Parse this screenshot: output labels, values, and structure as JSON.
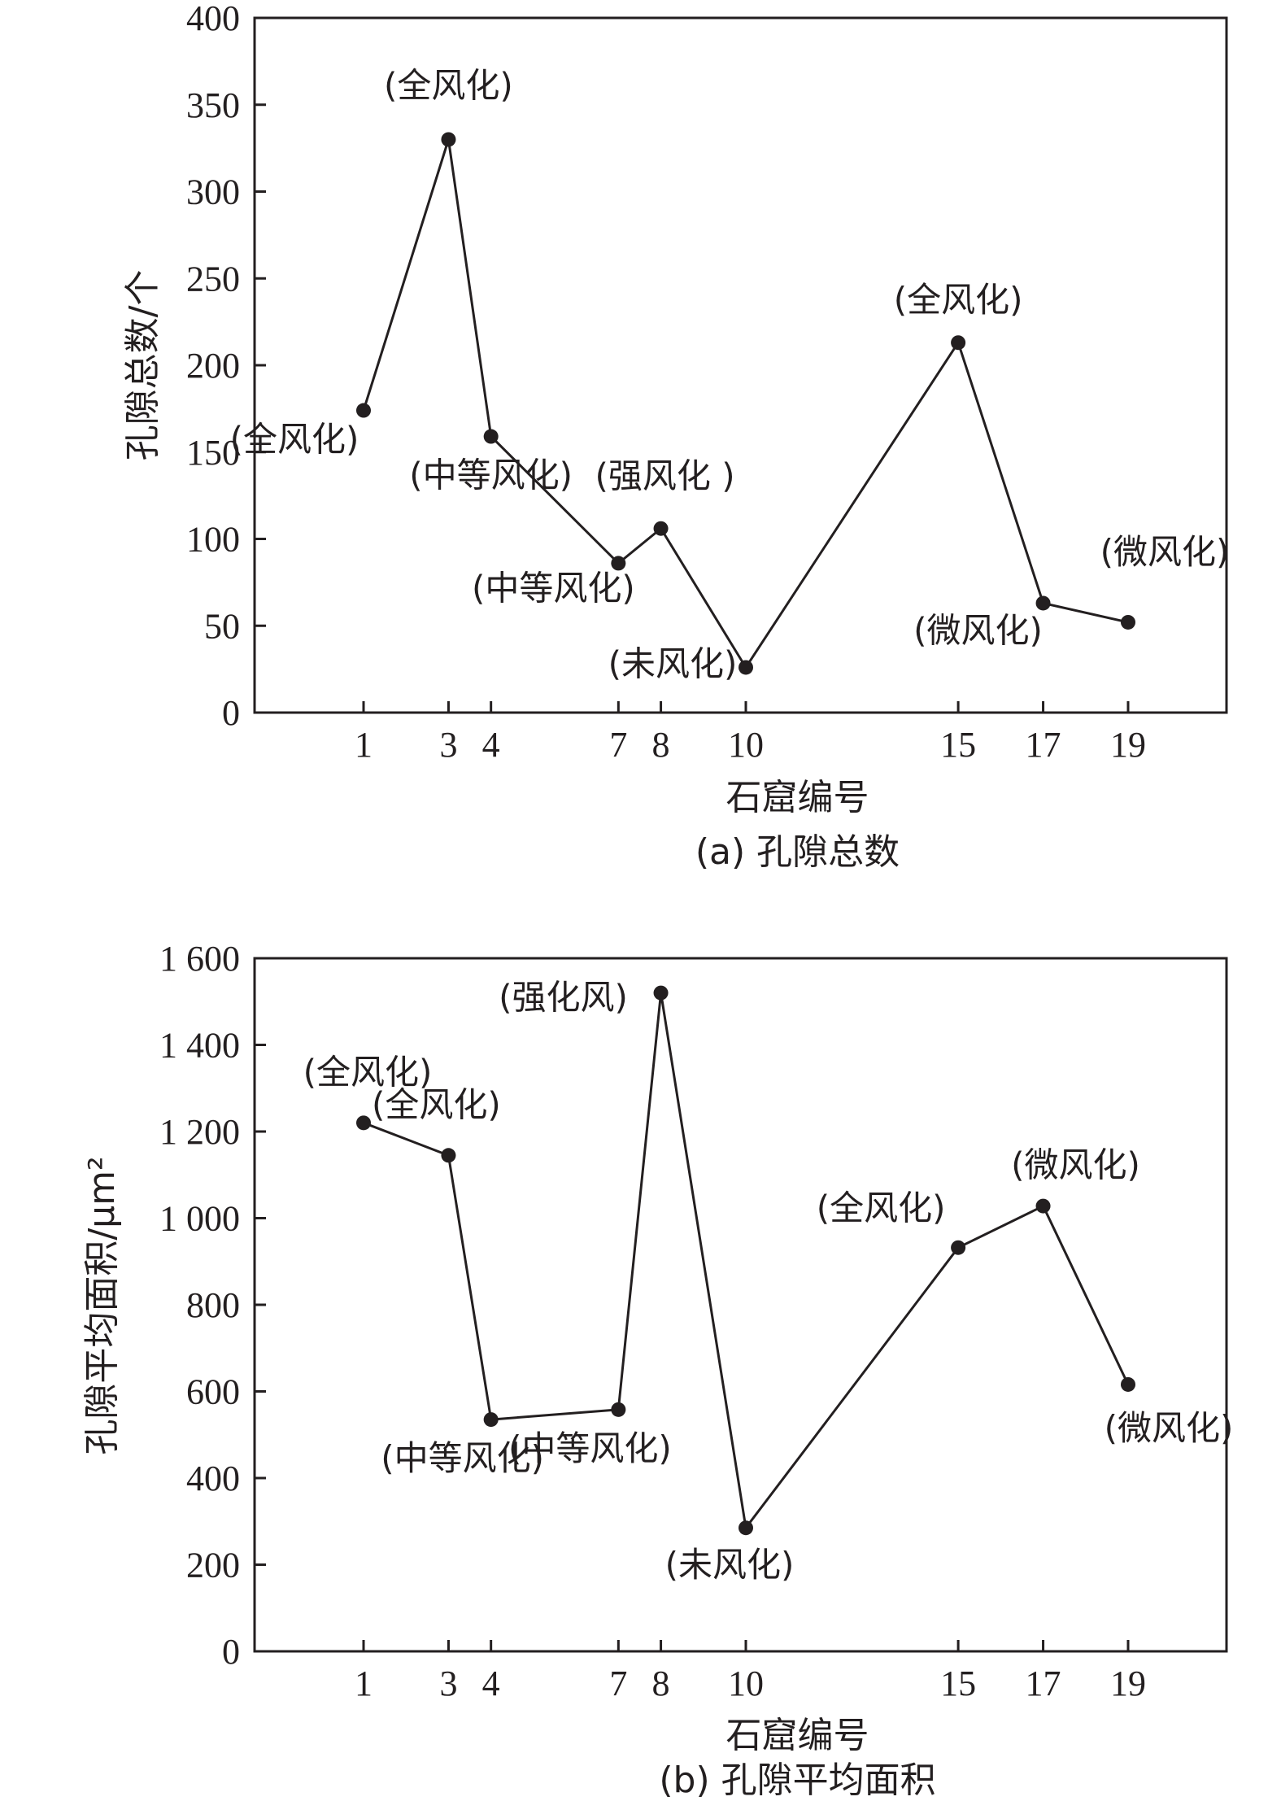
{
  "chart_data": [
    {
      "type": "line",
      "caption": "(a) 孔隙总数",
      "xlabel": "石窟编号",
      "ylabel": "孔隙总数/个",
      "ylim": [
        0,
        400
      ],
      "yticks": [
        0,
        50,
        100,
        150,
        200,
        250,
        300,
        350,
        400
      ],
      "ytick_labels": [
        "0",
        "50",
        "100",
        "150",
        "200",
        "250",
        "300",
        "350",
        "400"
      ],
      "xticks": [
        1,
        3,
        4,
        7,
        8,
        10,
        15,
        17,
        19
      ],
      "xtick_labels": [
        "1",
        "3",
        "4",
        "7",
        "8",
        "10",
        "15",
        "17",
        "19"
      ],
      "grid": false,
      "legend": "none",
      "series": [
        {
          "x": [
            1,
            3,
            4,
            7,
            8,
            10,
            15,
            17,
            19
          ],
          "values": [
            174,
            330,
            159,
            86,
            106,
            26,
            213,
            63,
            52
          ],
          "point_labels": [
            "(全风化)",
            "(全风化)",
            "(中等风化)",
            "(中等风化)",
            "(强风化 )",
            "(未风化)",
            "(全风化)",
            "(微风化)",
            "(微风化)"
          ]
        }
      ]
    },
    {
      "type": "line",
      "caption": "(b) 孔隙平均面积",
      "xlabel": "石窟编号",
      "ylabel": "孔隙平均面积/μm²",
      "ylim": [
        0,
        1600
      ],
      "yticks": [
        0,
        200,
        400,
        600,
        800,
        1000,
        1200,
        1400,
        1600
      ],
      "ytick_labels": [
        "0",
        "200",
        "400",
        "600",
        "800",
        "1 000",
        "1 200",
        "1 400",
        "1 600"
      ],
      "xticks": [
        1,
        3,
        4,
        7,
        8,
        10,
        15,
        17,
        19
      ],
      "xtick_labels": [
        "1",
        "3",
        "4",
        "7",
        "8",
        "10",
        "15",
        "17",
        "19"
      ],
      "grid": false,
      "legend": "none",
      "series": [
        {
          "x": [
            1,
            3,
            4,
            7,
            8,
            10,
            15,
            17,
            19
          ],
          "values": [
            1220,
            1145,
            535,
            558,
            1520,
            285,
            932,
            1028,
            616
          ],
          "point_labels": [
            "(全风化)",
            "(全风化)",
            "(中等风化)",
            "(中等风化)",
            "(强化风)",
            "(未风化)",
            "(全风化)",
            "(微风化)",
            "(微风化)"
          ]
        }
      ]
    }
  ]
}
